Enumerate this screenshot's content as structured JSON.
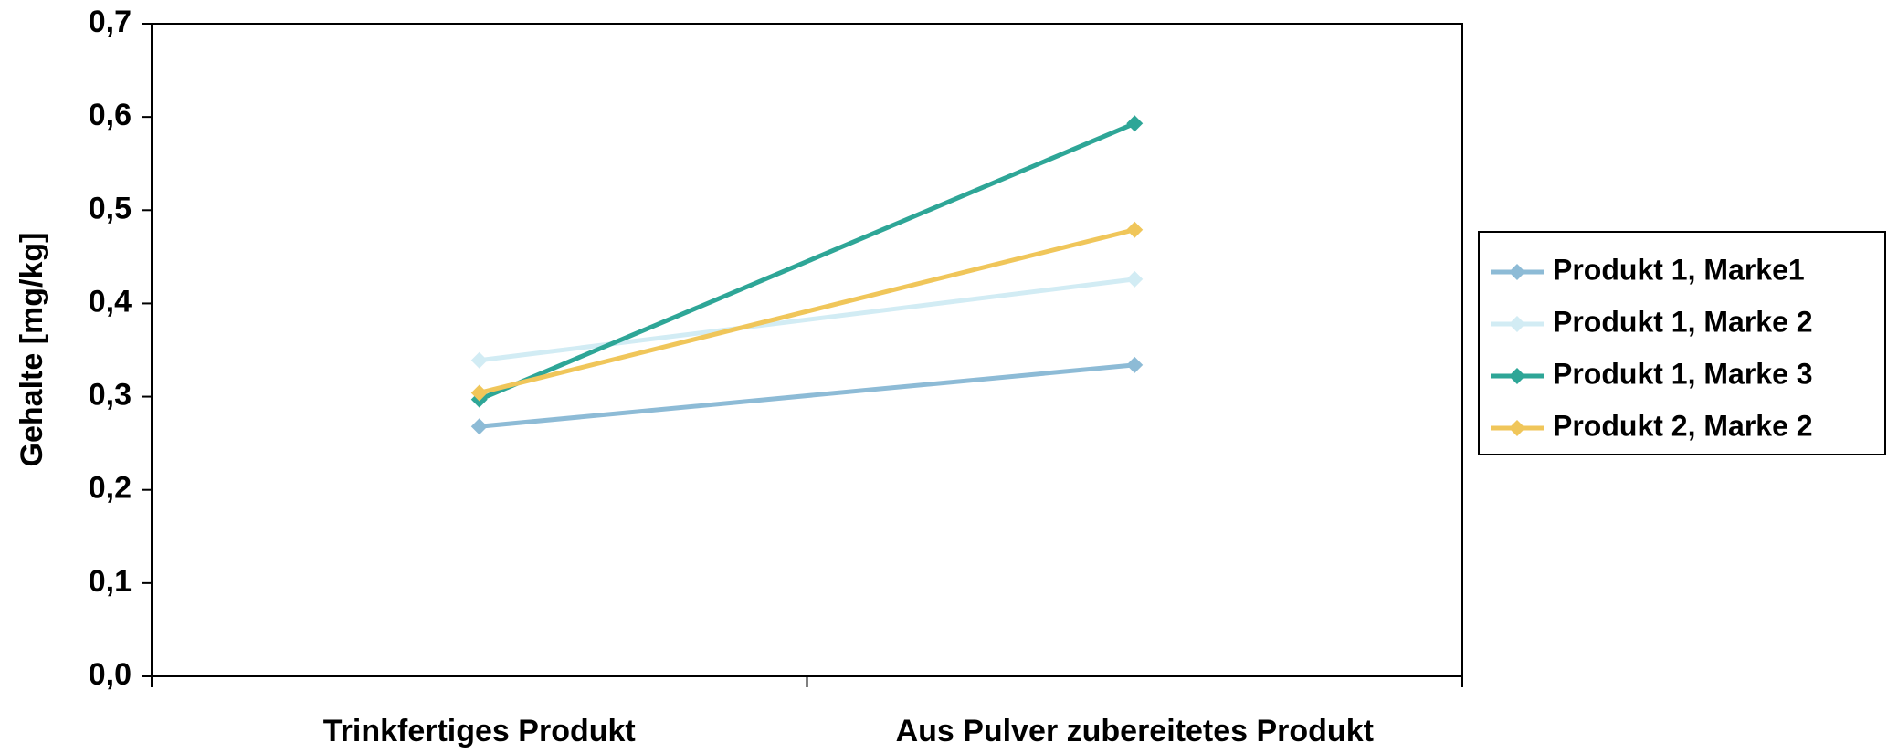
{
  "chart_data": {
    "type": "line",
    "y_label": "Gehalte [mg/kg]",
    "categories": [
      "Trinkfertiges Produkt",
      "Aus Pulver zubereitetes Produkt"
    ],
    "series": [
      {
        "name": "Produkt 1, Marke1",
        "color": "#8dbbd6",
        "values": [
          0.268,
          0.334
        ]
      },
      {
        "name": "Produkt 1, Marke 2",
        "color": "#d2ecf4",
        "values": [
          0.339,
          0.426
        ]
      },
      {
        "name": "Produkt 1, Marke 3",
        "color": "#2ea697",
        "values": [
          0.297,
          0.593
        ]
      },
      {
        "name": "Produkt 2, Marke 2",
        "color": "#f0c65a",
        "values": [
          0.304,
          0.479
        ]
      }
    ],
    "ylim": [
      0,
      0.7
    ],
    "yticks": [
      {
        "value": 0,
        "label": "0,0"
      },
      {
        "value": 0.1,
        "label": "0,1"
      },
      {
        "value": 0.2,
        "label": "0,2"
      },
      {
        "value": 0.3,
        "label": "0,3"
      },
      {
        "value": 0.4,
        "label": "0,4"
      },
      {
        "value": 0.5,
        "label": "0,5"
      },
      {
        "value": 0.6,
        "label": "0,6"
      },
      {
        "value": 0.7,
        "label": "0,7"
      }
    ],
    "grid": false,
    "legend": "right"
  }
}
